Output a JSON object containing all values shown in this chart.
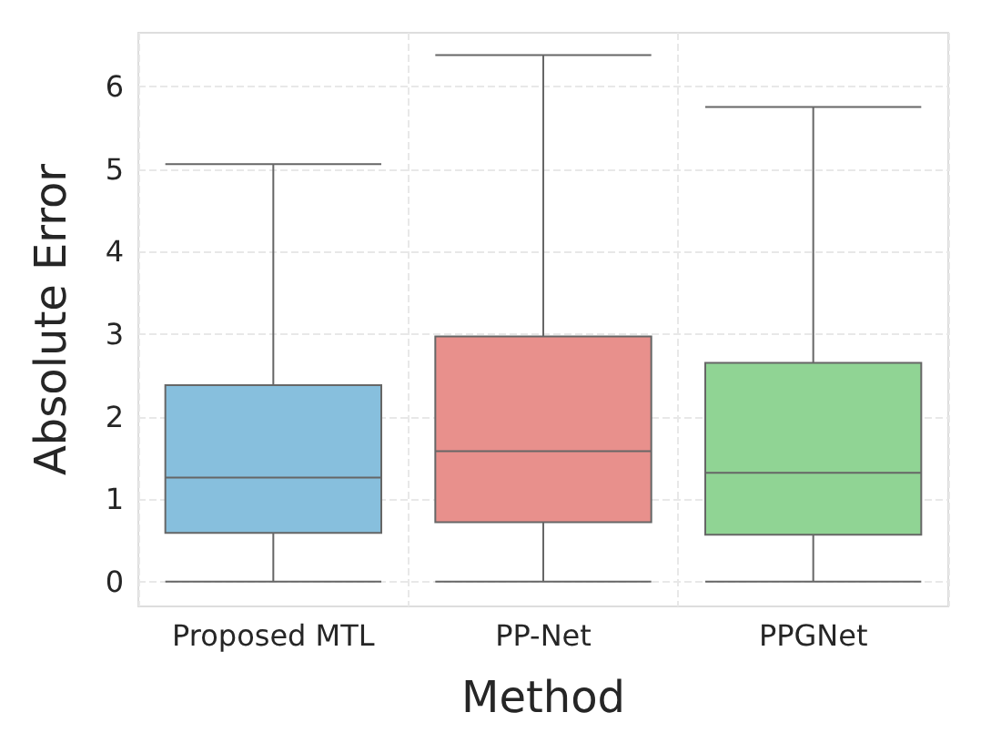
{
  "chart_data": {
    "type": "box",
    "xlabel": "Method",
    "ylabel": "Absolute Error",
    "categories": [
      "Proposed MTL",
      "PP-Net",
      "PPGNet"
    ],
    "colors": [
      "#87bfdd",
      "#e8908c",
      "#90d494"
    ],
    "boxes": [
      {
        "low": 0,
        "q1": 0.59,
        "median": 1.26,
        "q3": 2.38,
        "high": 5.06
      },
      {
        "low": 0,
        "q1": 0.72,
        "median": 1.58,
        "q3": 2.97,
        "high": 6.38
      },
      {
        "low": 0,
        "q1": 0.57,
        "median": 1.32,
        "q3": 2.65,
        "high": 5.75
      }
    ],
    "ylim": [
      -0.3,
      6.65
    ],
    "yticks": [
      0,
      1,
      2,
      3,
      4,
      5,
      6
    ],
    "grid": true
  }
}
